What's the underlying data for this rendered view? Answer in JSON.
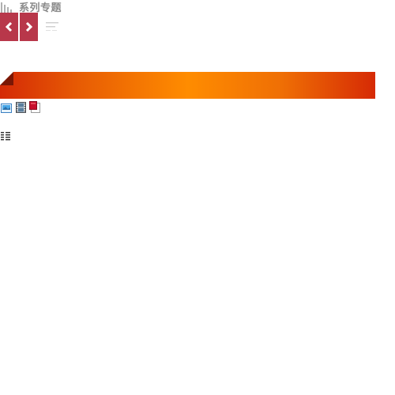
{
  "header": {
    "title": "系列专题",
    "icon": "bars-chart-icon"
  },
  "nav": {
    "prev_icon": "chevron-left-icon",
    "next_icon": "chevron-right-icon",
    "menu_icon": "hamburger-menu-icon",
    "button_color": "#b8374a"
  },
  "banner": {
    "colors": [
      "#d42a06",
      "#ff8c00",
      "#d62a05"
    ]
  },
  "media": {
    "icons": [
      "image-icon",
      "film-icon",
      "document-icon"
    ]
  },
  "list": {
    "icon": "list-icon"
  }
}
